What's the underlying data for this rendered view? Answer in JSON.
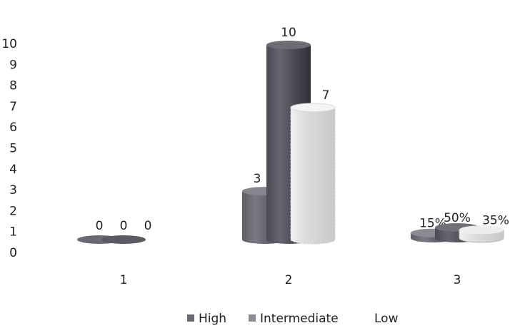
{
  "chart_data": {
    "type": "bar",
    "style": "3d-cylinder",
    "categories": [
      "1",
      "2",
      "3"
    ],
    "series": [
      {
        "name": "High",
        "color": "#5e5e66",
        "values": [
          0,
          3,
          null
        ],
        "labels": [
          "0",
          "3",
          "15%"
        ],
        "label_values": [
          0,
          3,
          0.15
        ]
      },
      {
        "name": "Intermediate",
        "color": "#4a4a52",
        "values": [
          0,
          10,
          null
        ],
        "labels": [
          "0",
          "10",
          "50%"
        ],
        "label_values": [
          0,
          10,
          0.5
        ]
      },
      {
        "name": "Low",
        "color": "#e0e0e0",
        "values": [
          0,
          7,
          null
        ],
        "labels": [
          "0",
          "7",
          "35%"
        ],
        "label_values": [
          0,
          7,
          0.35
        ]
      }
    ],
    "yticks": [
      "0",
      "1",
      "2",
      "3",
      "4",
      "5",
      "6",
      "7",
      "8",
      "9",
      "10"
    ],
    "ylim": [
      0,
      10
    ],
    "grid": false,
    "legend_position": "bottom",
    "title": "",
    "xlabel": "",
    "ylabel": ""
  }
}
